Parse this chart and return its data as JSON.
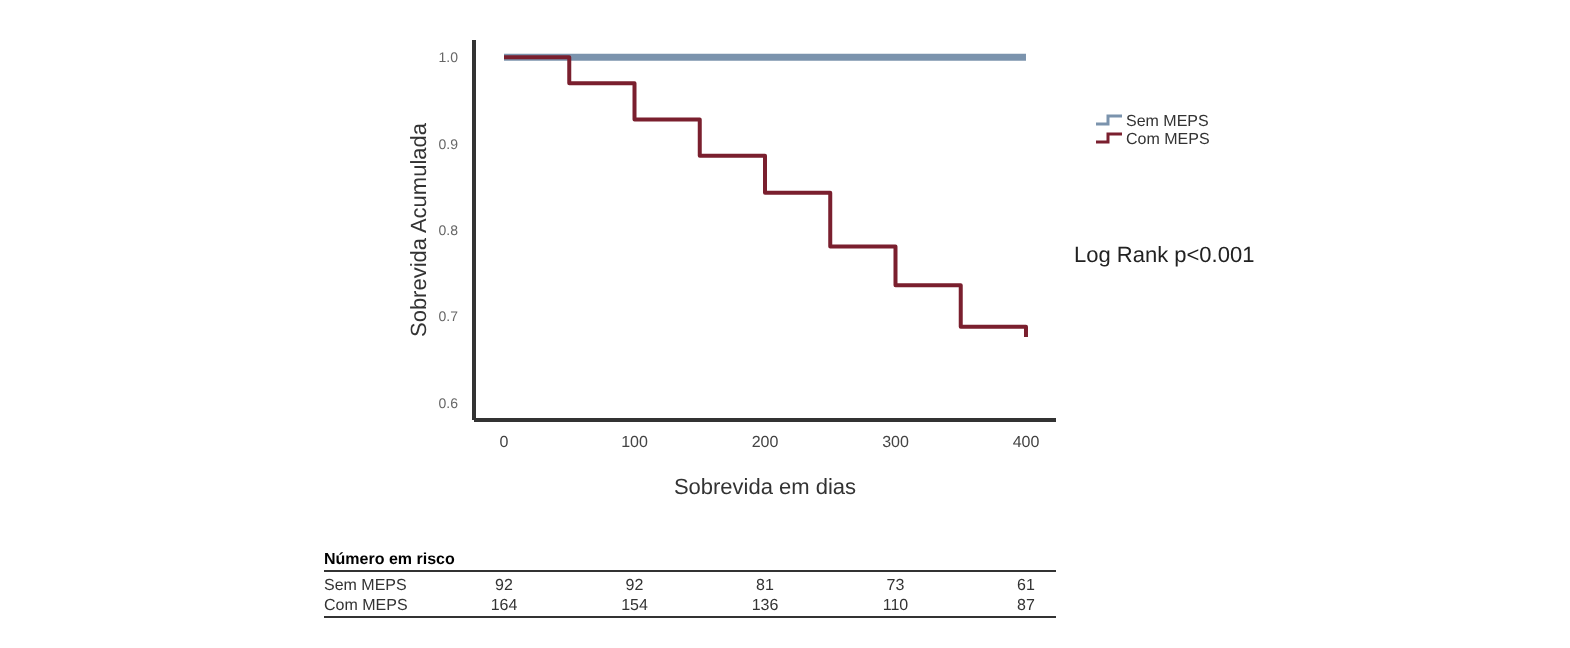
{
  "chart_data": {
    "type": "step",
    "xlabel": "Sobrevida em dias",
    "ylabel": "Sobrevida Acumulada",
    "series": [
      {
        "name": "Sem MEPS",
        "color": "#7b93ad",
        "x": [
          0,
          400
        ],
        "values": [
          1.0,
          1.0
        ]
      },
      {
        "name": "Com MEPS",
        "color": "#7a1f2e",
        "x": [
          0,
          50,
          100,
          150,
          200,
          250,
          300,
          350,
          400
        ],
        "values": [
          1.0,
          0.97,
          0.928,
          0.886,
          0.843,
          0.781,
          0.736,
          0.688,
          0.676
        ]
      }
    ],
    "xlim": [
      -23,
      423
    ],
    "xticks": [
      0,
      100,
      200,
      300,
      400
    ],
    "ylim": [
      0.58,
      1.02
    ],
    "yticks": [
      {
        "value": 0.6,
        "label": "0.6"
      },
      {
        "value": 0.7,
        "label": "0.7"
      },
      {
        "value": 0.8,
        "label": "0.8"
      },
      {
        "value": 0.9,
        "label": "0.9"
      },
      {
        "value": 1.0,
        "label": "1.0"
      }
    ],
    "grid": false,
    "legend": "right",
    "annotations": [
      "Log Rank p<0.001",
      "Número em risco",
      "Sem MEPS",
      "92",
      "92",
      "81",
      "73",
      "61",
      "Com MEPS",
      "164",
      "154",
      "136",
      "110",
      "87"
    ]
  }
}
